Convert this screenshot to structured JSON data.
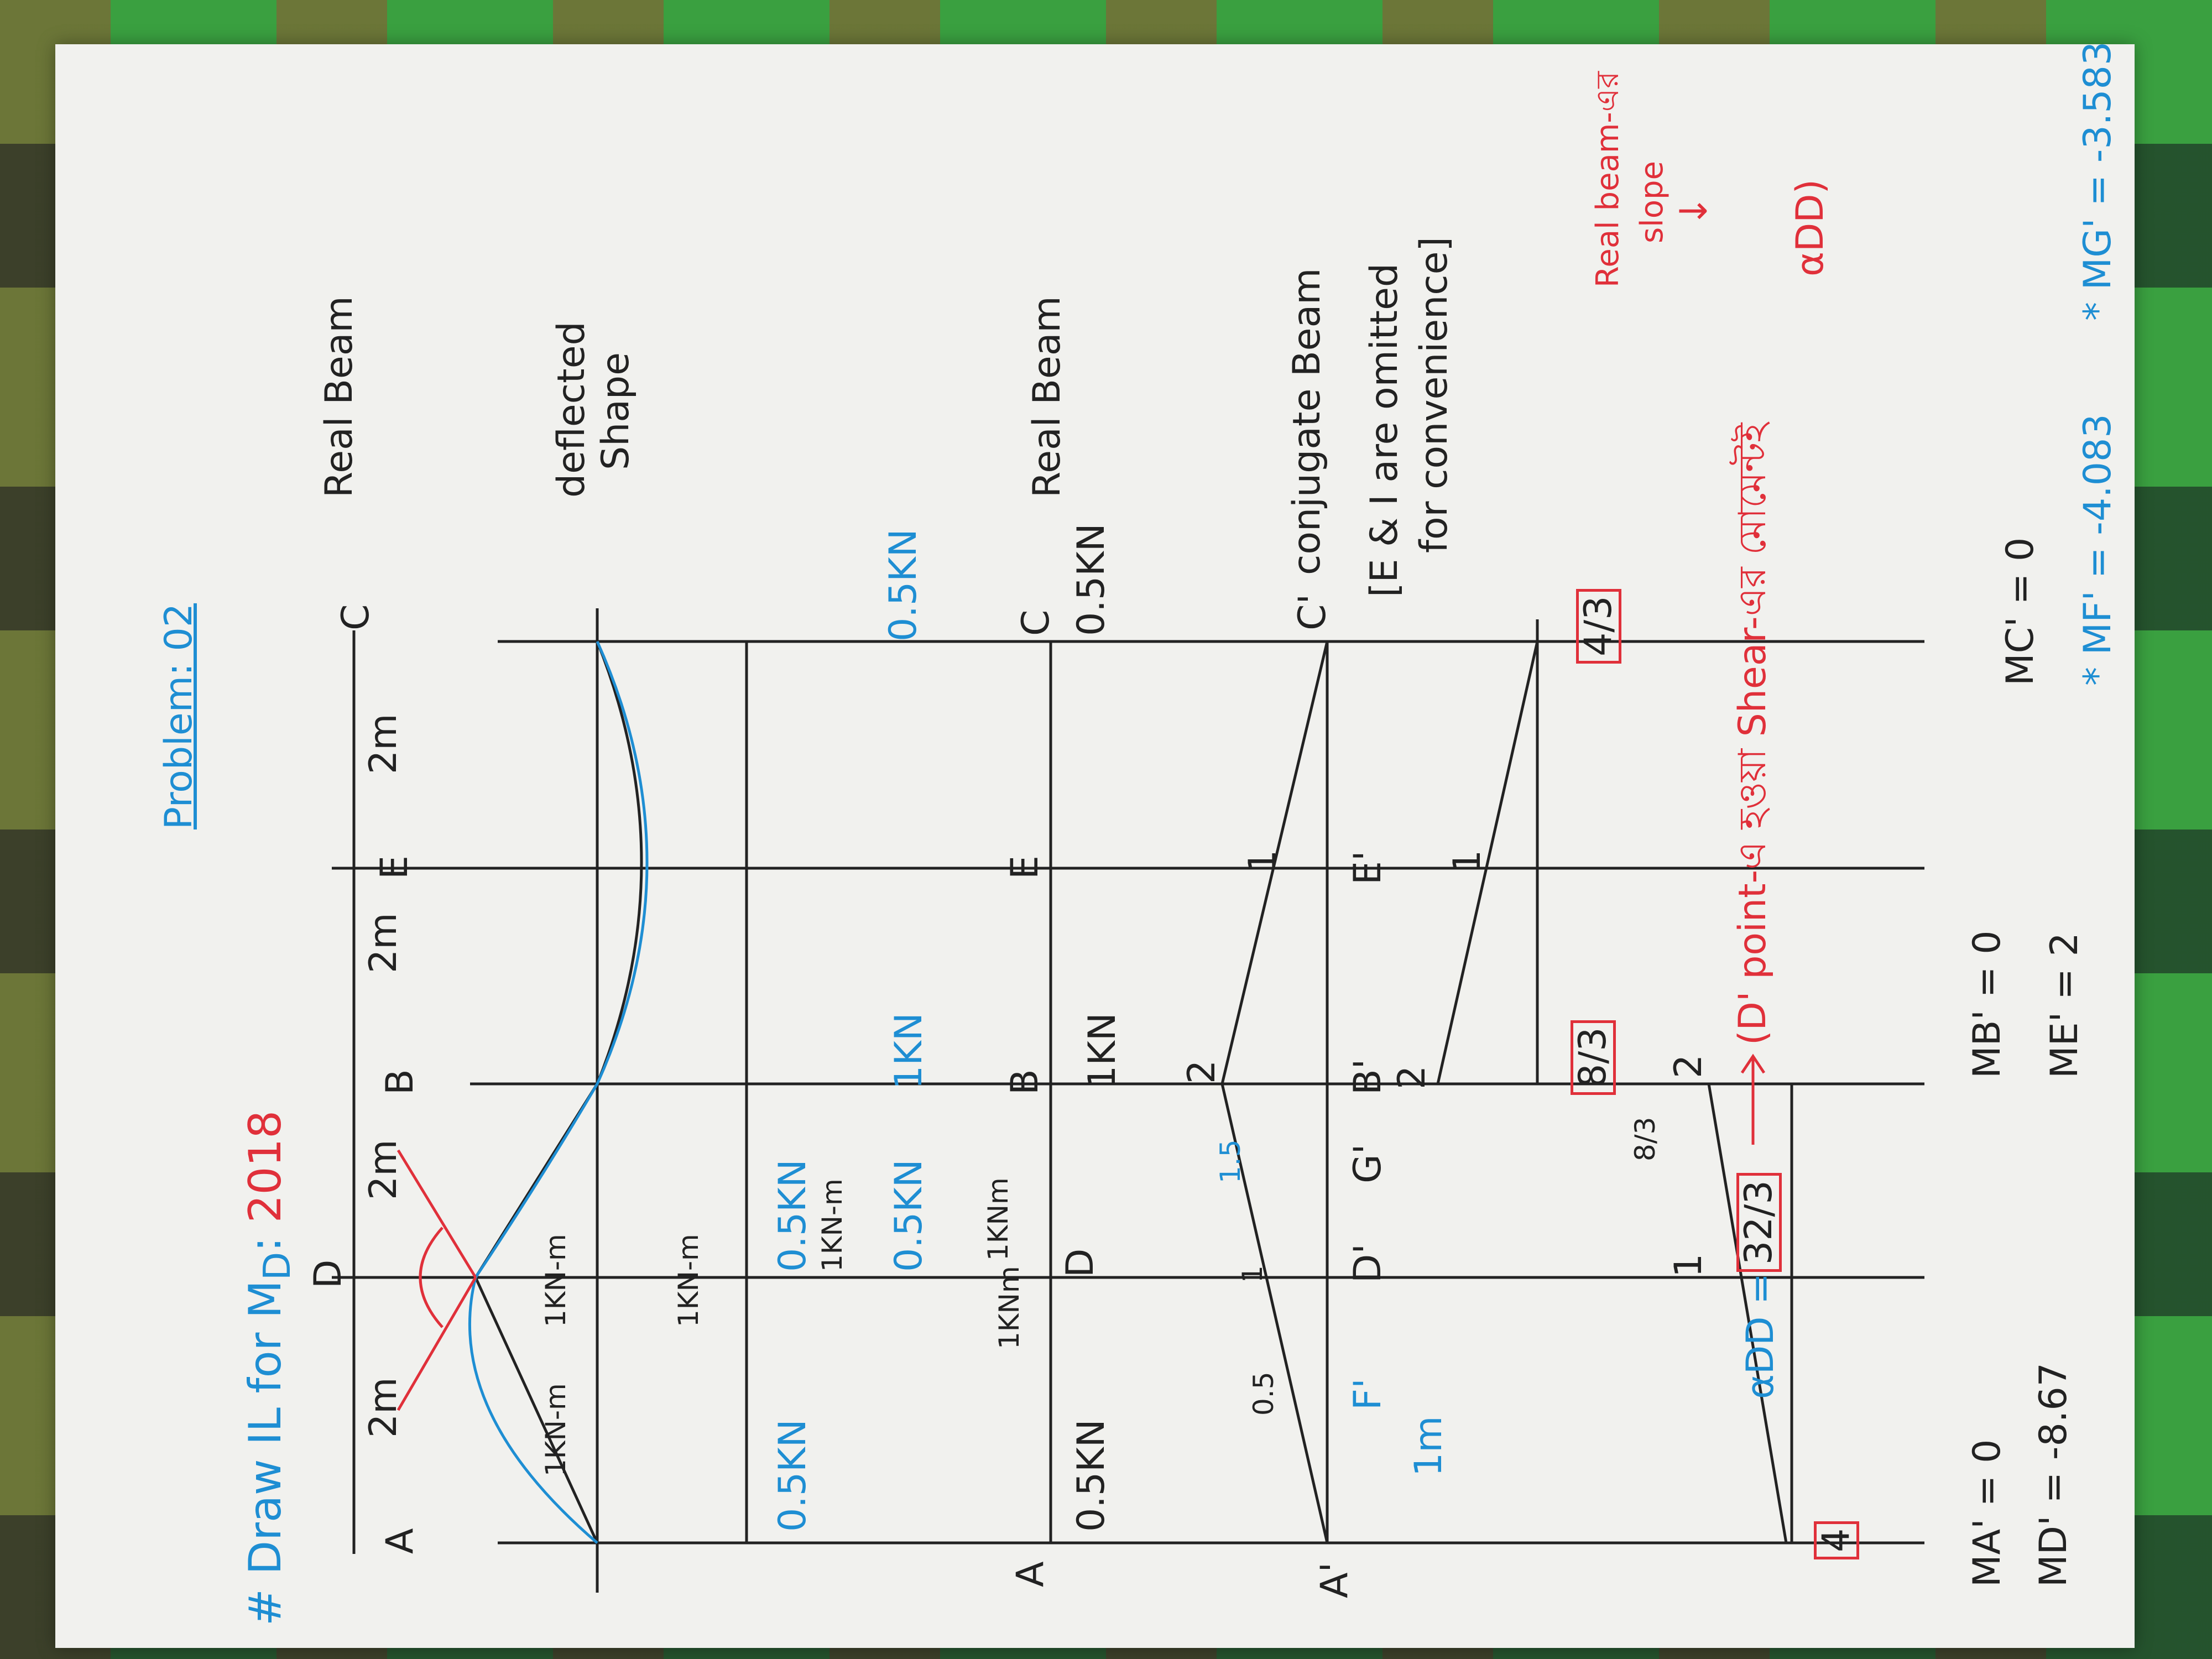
{
  "title": {
    "hash": "#",
    "text": "Draw IL for M",
    "sub": "D",
    "colon": ":",
    "year": "2018"
  },
  "problem": "Problem: 02",
  "real_beam": {
    "label": "Real Beam",
    "points": [
      "A",
      "D",
      "B",
      "E",
      "C"
    ],
    "spans": [
      "2m",
      "2m",
      "2m",
      "2m"
    ]
  },
  "deflected": {
    "label1": "deflected",
    "label2": "Shape"
  },
  "loads_diagram": {
    "r_a": "0.5KN",
    "m_left": "1KN-m",
    "m_left2": "1KN-m",
    "m_right": "1KN-m",
    "m_d_top": "1KN-m",
    "m_d_low": "1KN-m",
    "f_d1": "0.5KN",
    "f_d2": "0.5KN",
    "f_b": "1KN",
    "r_c": "0.5KN"
  },
  "real_beam2": {
    "label": "Real Beam",
    "points": [
      "A",
      "D",
      "B",
      "E",
      "C"
    ],
    "r_a": "0.5KN",
    "m1": "1KNm",
    "m2": "1KNm",
    "f_b": "1KN",
    "r_c": "0.5KN"
  },
  "conjugate": {
    "label": "conjugate Beam",
    "points": [
      "A'",
      "F'",
      "D'",
      "G'",
      "B'",
      "E'",
      "C'"
    ],
    "values": [
      "0.5",
      "1",
      "1.5",
      "2",
      "1"
    ],
    "span": "1m",
    "note1": "[E & I are omitted",
    "note2": "for convenience]"
  },
  "conj_load2": {
    "values": [
      "2",
      "1"
    ],
    "boxed_c": "4/3",
    "boxed_b": "8/3"
  },
  "conj_load3": {
    "values": [
      "1",
      "8/3",
      "2"
    ],
    "boxed_a": "4",
    "alpha_label": "αDD =",
    "boxed_d": "32/3"
  },
  "explanation": {
    "arrow_text": "(D' point-এ হওয়া Shear-এর মোমেন্টই",
    "alpha": "αDD)",
    "side1": "Real beam-এর",
    "side2": "slope",
    "side3": "↓"
  },
  "results": {
    "ma": "MA' = 0",
    "md": "MD' = -8.67",
    "mb": "MB' = 0",
    "me": "ME' = 2",
    "mc": "MC' = 0",
    "mf": "* MF' = -4.083",
    "mg": "* MG' = -3.583"
  },
  "colors": {
    "ink": "#222222",
    "blue": "#1e8ed3",
    "red": "#e0303a"
  }
}
